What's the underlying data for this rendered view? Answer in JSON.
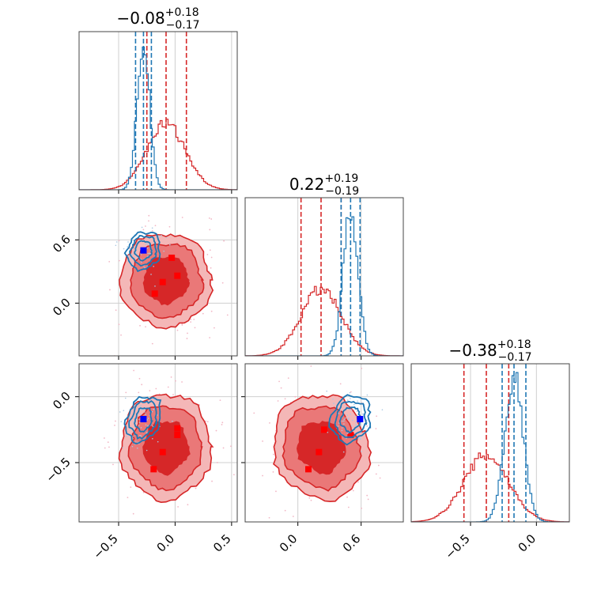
{
  "colors": {
    "red": "#d62728",
    "blue": "#1f77b4",
    "marker_blue": "#0000ff",
    "marker_red": "#ff0000"
  },
  "titles": {
    "p1": {
      "main": "−0.08",
      "sup": "+0.18",
      "sub": "−0.17"
    },
    "p2": {
      "main": "0.22",
      "sup": "+0.19",
      "sub": "−0.19"
    },
    "p3": {
      "main": "−0.38",
      "sup": "+0.18",
      "sub": "−0.17"
    }
  },
  "chart_data": {
    "type": "corner",
    "params": [
      "p1",
      "p2",
      "p3"
    ],
    "ranges": {
      "p1": [
        -0.85,
        0.55
      ],
      "p2": [
        -0.5,
        1.0
      ],
      "p3": [
        -0.95,
        0.25
      ]
    },
    "ticks": {
      "p1": [
        {
          "v": -0.5,
          "label": "−0.5"
        },
        {
          "v": 0.0,
          "label": "0.0"
        },
        {
          "v": 0.5,
          "label": "0.5"
        }
      ],
      "p2": [
        {
          "v": 0.0,
          "label": "0.0"
        },
        {
          "v": 0.6,
          "label": "0.6"
        }
      ],
      "p3": [
        {
          "v": -0.5,
          "label": "−0.5"
        },
        {
          "v": 0.0,
          "label": "0.0"
        }
      ]
    },
    "grid": true,
    "series": [
      {
        "color": "red",
        "quantiles": {
          "p1": [
            -0.25,
            -0.08,
            0.1
          ],
          "p2": [
            0.03,
            0.22,
            0.41
          ],
          "p3": [
            -0.55,
            -0.38,
            -0.21
          ]
        },
        "stats": {
          "p1": {
            "mean": -0.08,
            "sd": 0.17
          },
          "p2": {
            "mean": 0.22,
            "sd": 0.19
          },
          "p3": {
            "mean": -0.38,
            "sd": 0.17
          }
        },
        "points": {
          "p1_p2": [
            [
              -0.03,
              0.43
            ],
            [
              0.02,
              0.26
            ],
            [
              -0.11,
              0.2
            ],
            [
              -0.18,
              0.09
            ]
          ],
          "p1_p3": [
            [
              0.02,
              -0.24
            ],
            [
              0.02,
              -0.29
            ],
            [
              -0.11,
              -0.42
            ],
            [
              -0.19,
              -0.55
            ]
          ],
          "p2_p3": [
            [
              0.5,
              -0.29
            ],
            [
              0.25,
              -0.25
            ],
            [
              0.2,
              -0.42
            ],
            [
              0.1,
              -0.55
            ]
          ]
        }
      },
      {
        "color": "blue",
        "quantiles": {
          "p1": [
            -0.35,
            -0.28,
            -0.21
          ],
          "p2": [
            0.41,
            0.5,
            0.59
          ],
          "p3": [
            -0.26,
            -0.17,
            -0.08
          ]
        },
        "stats": {
          "p1": {
            "mean": -0.28,
            "sd": 0.055
          },
          "p2": {
            "mean": 0.5,
            "sd": 0.07
          },
          "p3": {
            "mean": -0.17,
            "sd": 0.07
          }
        },
        "points": {
          "p1_p2": [
            [
              -0.28,
              0.5
            ]
          ],
          "p1_p3": [
            [
              -0.28,
              -0.17
            ]
          ],
          "p2_p3": [
            [
              0.59,
              -0.17
            ]
          ]
        }
      }
    ]
  }
}
